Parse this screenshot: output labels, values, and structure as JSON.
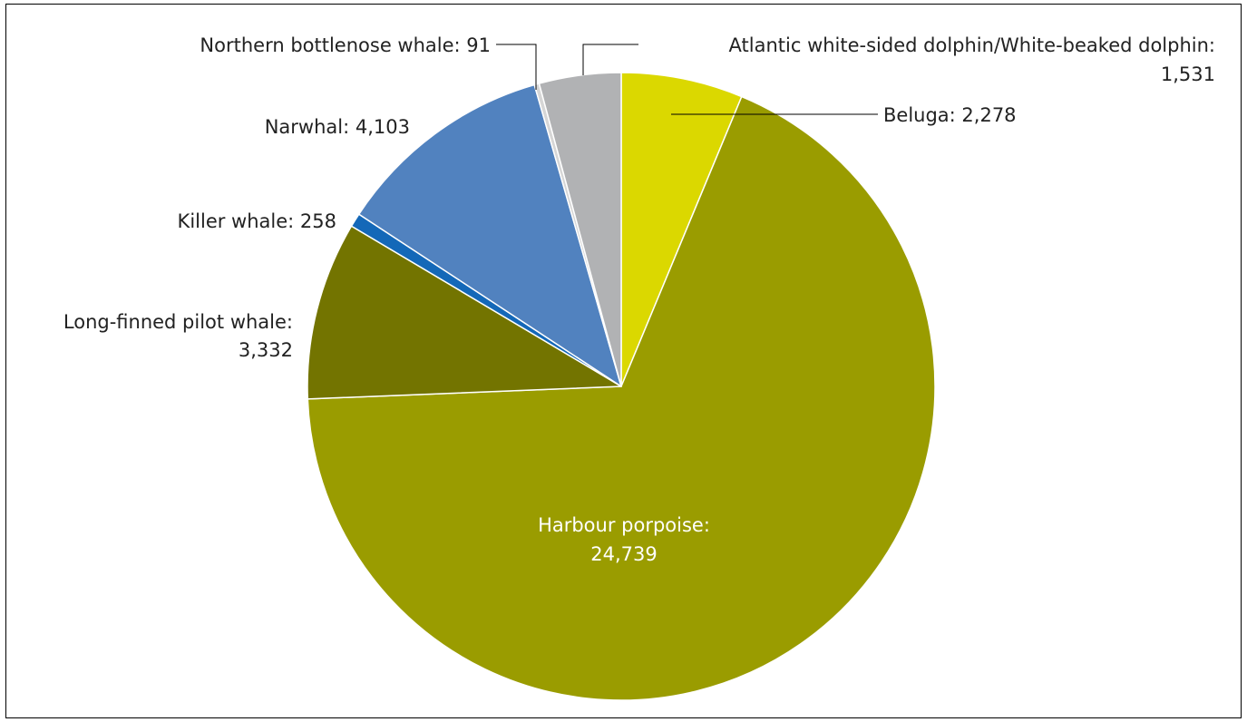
{
  "chart_data": {
    "type": "pie",
    "title": "",
    "slices": [
      {
        "label": "Beluga",
        "value": 2278,
        "display_value": "2,278",
        "color": "#dbd800"
      },
      {
        "label": "Harbour porpoise",
        "value": 24739,
        "display_value": "24,739",
        "color": "#9a9c00"
      },
      {
        "label": "Long-finned pilot whale",
        "value": 3332,
        "display_value": "3,332",
        "color": "#737400"
      },
      {
        "label": "Killer whale",
        "value": 258,
        "display_value": "258",
        "color": "#1468b8"
      },
      {
        "label": "Narwhal",
        "value": 4103,
        "display_value": "4,103",
        "color": "#5182bf"
      },
      {
        "label": "Northern bottlenose whale",
        "value": 91,
        "display_value": "91",
        "color": "#d6d6d6"
      },
      {
        "label": "Atlantic white-sided dolphin/White-beaked dolphin",
        "value": 1531,
        "display_value": "1,531",
        "color": "#b1b2b4"
      }
    ],
    "start": "12 o'clock",
    "direction": "clockwise",
    "legend": "none",
    "data_labels": {
      "beluga": "Beluga: 2,278",
      "harbour_porpoise_l1": "Harbour porpoise:",
      "harbour_porpoise_l2": "24,739",
      "pilot_whale_l1": "Long-finned pilot whale:",
      "pilot_whale_l2": "3,332",
      "killer_whale": "Killer whale: 258",
      "narwhal": "Narwhal: 4,103",
      "bottlenose": "Northern bottlenose whale: 91",
      "atlantic_l1": "Atlantic white-sided dolphin/White-beaked dolphin:",
      "atlantic_l2": "1,531"
    }
  }
}
